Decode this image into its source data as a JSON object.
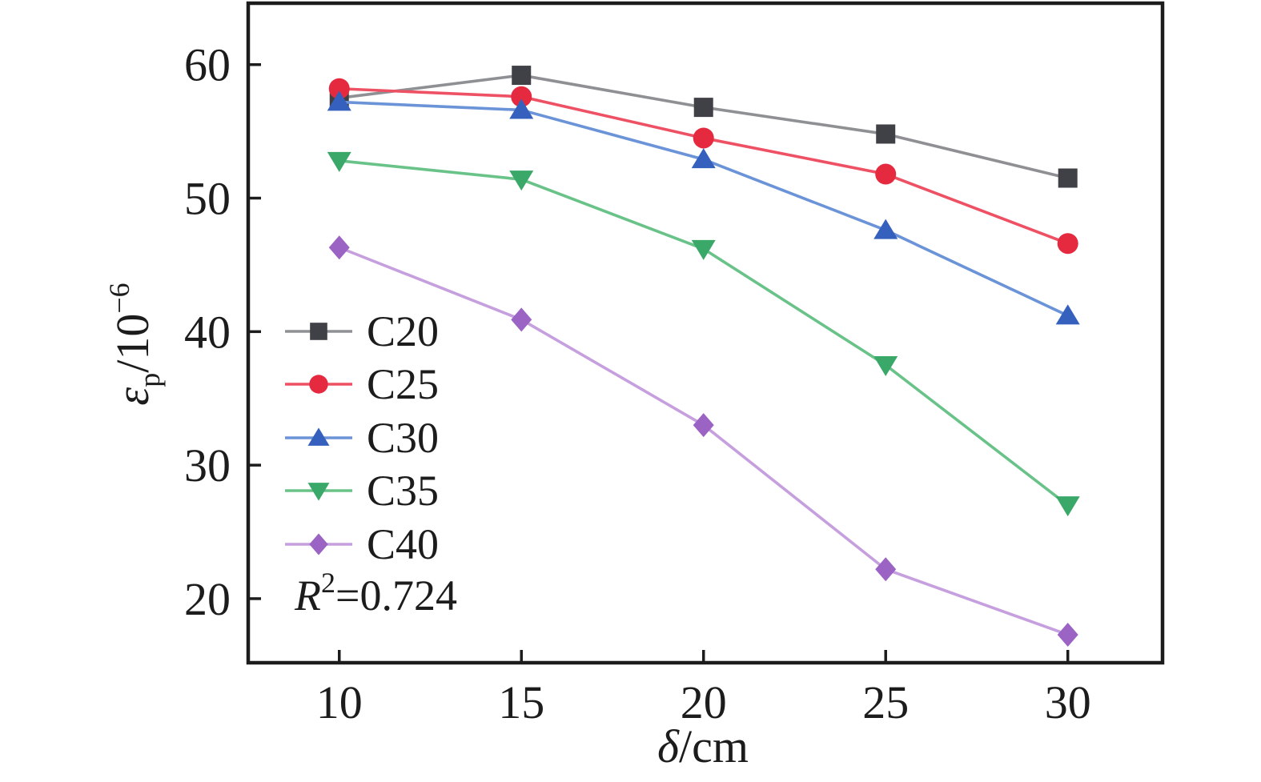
{
  "chart_data": {
    "type": "line",
    "x": [
      10,
      15,
      20,
      25,
      30
    ],
    "series": [
      {
        "name": "C20",
        "marker": "square",
        "marker_color": "#3f4147",
        "line_color": "#8e9094",
        "values": [
          57.5,
          59.2,
          56.8,
          54.8,
          51.5
        ]
      },
      {
        "name": "C25",
        "marker": "circle",
        "marker_color": "#e52a40",
        "line_color": "#ee5064",
        "values": [
          58.2,
          57.6,
          54.5,
          51.8,
          46.6
        ]
      },
      {
        "name": "C30",
        "marker": "triangle-up",
        "marker_color": "#3560bd",
        "line_color": "#6b93d8",
        "values": [
          57.2,
          56.6,
          52.9,
          47.6,
          41.2
        ]
      },
      {
        "name": "C35",
        "marker": "triangle-down",
        "marker_color": "#3aa868",
        "line_color": "#69c389",
        "values": [
          52.8,
          51.4,
          46.2,
          37.5,
          27.0
        ]
      },
      {
        "name": "C40",
        "marker": "diamond",
        "marker_color": "#9b63c4",
        "line_color": "#c69fdf",
        "values": [
          46.3,
          40.9,
          33.0,
          22.2,
          17.3
        ]
      }
    ],
    "x_ticks": [
      "10",
      "15",
      "20",
      "25",
      "30"
    ],
    "y_ticks": [
      "20",
      "30",
      "40",
      "50",
      "60"
    ],
    "x_tick_values": [
      10,
      15,
      20,
      25,
      30
    ],
    "y_tick_values": [
      20,
      30,
      40,
      50,
      60
    ],
    "xlim": [
      7.5,
      32.6
    ],
    "ylim": [
      15.2,
      64.6
    ],
    "xlabel": {
      "symbol": "δ",
      "rest": "/cm"
    },
    "ylabel": {
      "symbol": "ε",
      "sub": "p",
      "rest": "/10",
      "sup": "−6"
    },
    "annotation": {
      "prefix": "R",
      "sup": "2",
      "rest": "=0.724"
    },
    "legend_position": "inside-left",
    "grid": false,
    "frame_color": "#1c1c1c",
    "background_color": "#ffffff"
  }
}
